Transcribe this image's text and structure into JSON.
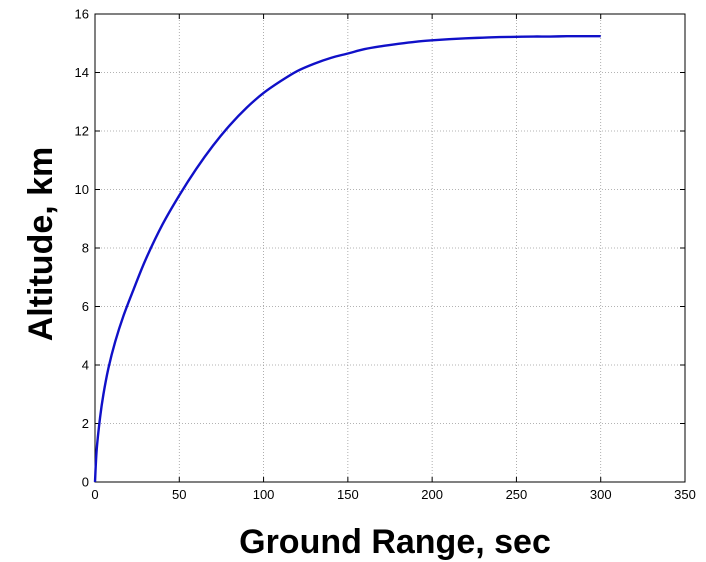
{
  "chart_data": {
    "type": "line",
    "title": "",
    "xlabel": "Ground Range, sec",
    "ylabel": "Altitude, km",
    "xlim": [
      0,
      350
    ],
    "ylim": [
      0,
      16
    ],
    "xticks": [
      0,
      50,
      100,
      150,
      200,
      250,
      300,
      350
    ],
    "yticks": [
      0,
      2,
      4,
      6,
      8,
      10,
      12,
      14,
      16
    ],
    "xtick_labels": [
      "0",
      "50",
      "100",
      "150",
      "200",
      "250",
      "300",
      "350"
    ],
    "ytick_labels": [
      "0",
      "2",
      "4",
      "6",
      "8",
      "10",
      "12",
      "14",
      "16"
    ],
    "grid": true,
    "legend": "none",
    "series": [
      {
        "color": "#1010c8",
        "x": [
          0,
          1,
          3,
          5,
          8,
          12,
          17,
          23,
          30,
          40,
          50,
          60,
          70,
          80,
          90,
          100,
          110,
          120,
          130,
          140,
          150,
          160,
          170,
          180,
          190,
          200,
          210,
          220,
          230,
          240,
          250,
          260,
          270,
          280,
          290,
          300
        ],
        "y": [
          0,
          1.1,
          2.2,
          3.0,
          3.9,
          4.8,
          5.7,
          6.6,
          7.6,
          8.8,
          9.8,
          10.7,
          11.5,
          12.2,
          12.8,
          13.3,
          13.7,
          14.05,
          14.3,
          14.5,
          14.65,
          14.8,
          14.9,
          14.98,
          15.05,
          15.1,
          15.14,
          15.17,
          15.19,
          15.21,
          15.22,
          15.23,
          15.23,
          15.24,
          15.24,
          15.24
        ]
      }
    ]
  }
}
